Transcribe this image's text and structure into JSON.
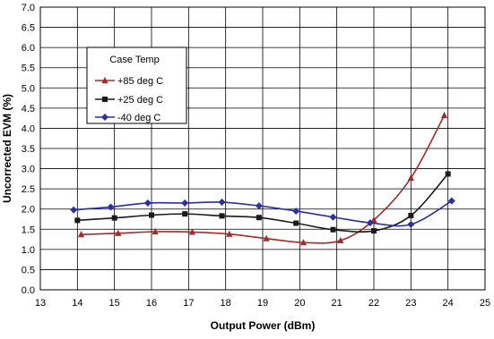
{
  "chart_data": {
    "type": "line",
    "title": "",
    "xlabel": "Output Power (dBm)",
    "ylabel": "Uncorrected EVM (%)",
    "xlim": [
      13,
      25
    ],
    "ylim": [
      0.0,
      7.0
    ],
    "x_ticks": [
      "13",
      "14",
      "15",
      "16",
      "17",
      "18",
      "19",
      "20",
      "21",
      "22",
      "23",
      "24",
      "25"
    ],
    "y_ticks": [
      "0.0",
      "0.5",
      "1.0",
      "1.5",
      "2.0",
      "2.5",
      "3.0",
      "3.5",
      "4.0",
      "4.5",
      "5.0",
      "5.5",
      "6.0",
      "6.5",
      "7.0"
    ],
    "grid": true,
    "legend": {
      "title": "Case Temp",
      "placement": "upper-left"
    },
    "series": [
      {
        "name": "+85 deg C",
        "color": "#a52a2a",
        "marker": "triangle",
        "points": [
          [
            14.1,
            1.37
          ],
          [
            15.1,
            1.4
          ],
          [
            16.1,
            1.44
          ],
          [
            17.1,
            1.43
          ],
          [
            18.1,
            1.38
          ],
          [
            19.1,
            1.27
          ],
          [
            20.1,
            1.17
          ],
          [
            21.1,
            1.22
          ],
          [
            22.0,
            1.73
          ],
          [
            23.0,
            2.77
          ],
          [
            23.9,
            4.32
          ]
        ]
      },
      {
        "name": "+25 deg C",
        "color": "#1a1a1a",
        "marker": "square",
        "points": [
          [
            14.0,
            1.72
          ],
          [
            15.0,
            1.78
          ],
          [
            16.0,
            1.85
          ],
          [
            16.9,
            1.88
          ],
          [
            17.9,
            1.83
          ],
          [
            18.9,
            1.79
          ],
          [
            19.9,
            1.65
          ],
          [
            20.9,
            1.49
          ],
          [
            22.0,
            1.46
          ],
          [
            23.0,
            1.84
          ],
          [
            24.0,
            2.87
          ]
        ]
      },
      {
        "name": "-40 deg C",
        "color": "#2b2fa0",
        "marker": "diamond",
        "points": [
          [
            13.9,
            1.98
          ],
          [
            14.9,
            2.05
          ],
          [
            15.9,
            2.15
          ],
          [
            16.9,
            2.15
          ],
          [
            17.9,
            2.17
          ],
          [
            18.9,
            2.08
          ],
          [
            19.9,
            1.95
          ],
          [
            20.9,
            1.8
          ],
          [
            21.9,
            1.66
          ],
          [
            23.0,
            1.62
          ],
          [
            24.1,
            2.2
          ]
        ]
      }
    ]
  }
}
